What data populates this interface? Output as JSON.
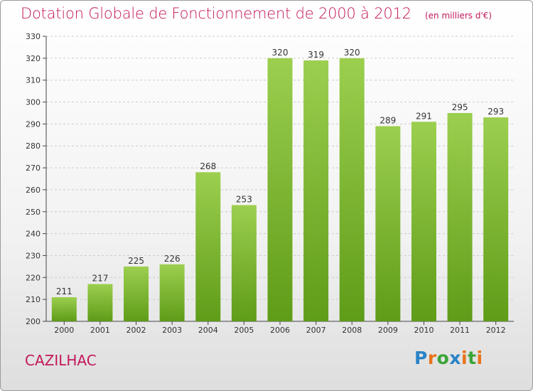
{
  "title": "Dotation Globale de Fonctionnement de 2000 à 2012",
  "subtitle": "(en milliers d'€)",
  "commune": "CAZILHAC",
  "logo": {
    "letters": [
      "P",
      "r",
      "o",
      "x",
      "i",
      "t",
      "i"
    ],
    "colors": [
      "#2a83c6",
      "#e8731a",
      "#3aa537",
      "#2a83c6",
      "#e8731a",
      "#3aa537",
      "#e8731a"
    ]
  },
  "colors": {
    "bar_top": "#9ccf4f",
    "bar_bottom": "#5f9c18",
    "grid": "#cccccc",
    "axis": "#444444",
    "text": "#333333"
  },
  "chart_data": {
    "type": "bar",
    "categories": [
      "2000",
      "2001",
      "2002",
      "2003",
      "2004",
      "2005",
      "2006",
      "2007",
      "2008",
      "2009",
      "2010",
      "2011",
      "2012"
    ],
    "values": [
      211,
      217,
      225,
      226,
      268,
      253,
      320,
      319,
      320,
      289,
      291,
      295,
      293
    ],
    "ylim": [
      200,
      330
    ],
    "yticks": [
      200,
      210,
      220,
      230,
      240,
      250,
      260,
      270,
      280,
      290,
      300,
      310,
      320,
      330
    ],
    "grid": true,
    "legend": "none"
  }
}
